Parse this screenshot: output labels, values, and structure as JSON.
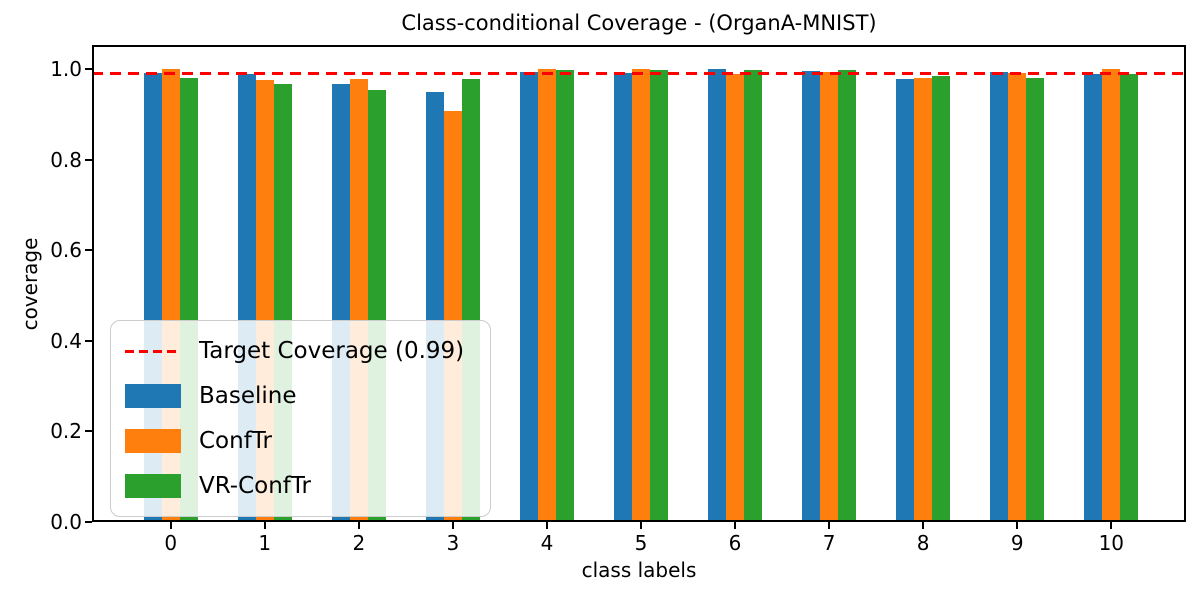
{
  "chart_data": {
    "type": "bar",
    "title": "Class-conditional Coverage - (OrganA-MNIST)",
    "xlabel": "class labels",
    "ylabel": "coverage",
    "categories": [
      "0",
      "1",
      "2",
      "3",
      "4",
      "5",
      "6",
      "7",
      "8",
      "9",
      "10"
    ],
    "series": [
      {
        "name": "Baseline",
        "color": "#1f77b4",
        "values": [
          0.991,
          0.988,
          0.968,
          0.95,
          0.994,
          0.992,
          1.0,
          0.995,
          0.977,
          0.994,
          0.988
        ]
      },
      {
        "name": "ConfTr",
        "color": "#ff7f0e",
        "values": [
          1.0,
          0.976,
          0.978,
          0.908,
          1.0,
          1.0,
          0.989,
          0.994,
          0.981,
          0.992,
          1.0
        ]
      },
      {
        "name": "VR-ConfTr",
        "color": "#2ca02c",
        "values": [
          0.98,
          0.967,
          0.953,
          0.979,
          0.998,
          0.998,
          0.997,
          0.998,
          0.984,
          0.98,
          0.99
        ]
      }
    ],
    "target_line": {
      "value": 0.99,
      "label": "Target Coverage (0.99)",
      "color": "#ff0000",
      "style": "dashed"
    },
    "ylim": [
      0,
      1.053
    ],
    "yticks": [
      0.0,
      0.2,
      0.4,
      0.6,
      0.8,
      1.0
    ],
    "ytick_labels": [
      "0.0",
      "0.2",
      "0.4",
      "0.6",
      "0.8",
      "1.0"
    ],
    "legend_position": "lower left",
    "grid": false
  }
}
